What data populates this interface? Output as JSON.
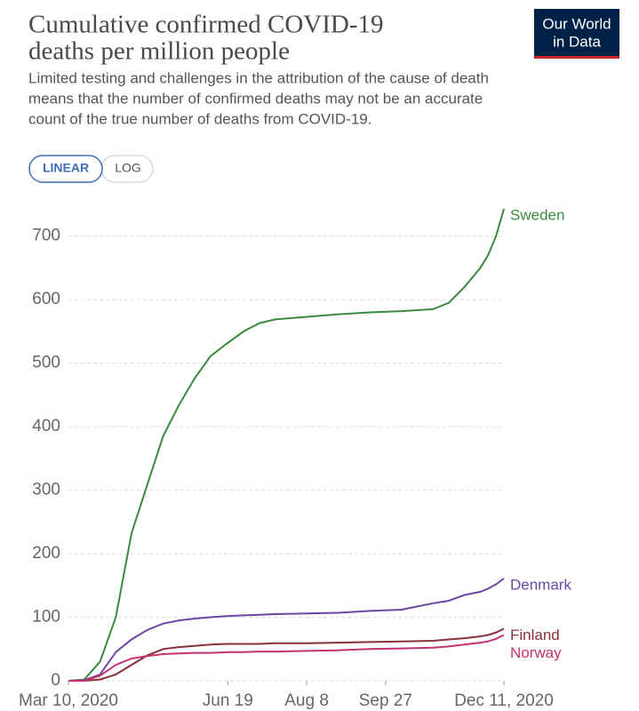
{
  "chart_data": {
    "type": "line",
    "title_lines": [
      "Cumulative confirmed COVID-19",
      "deaths per million people"
    ],
    "subtitle_lines": [
      "Limited testing and challenges in the attribution of the cause of death",
      "means that the number of confirmed deaths may not be an accurate",
      "count of the true number of deaths from COVID-19."
    ],
    "logo_lines": [
      "Our World",
      "in Data"
    ],
    "scale_buttons": [
      "LINEAR",
      "LOG"
    ],
    "x": [
      "2020-03-10",
      "2020-03-20",
      "2020-03-30",
      "2020-04-09",
      "2020-04-19",
      "2020-04-29",
      "2020-05-09",
      "2020-05-19",
      "2020-05-29",
      "2020-06-08",
      "2020-06-19",
      "2020-06-29",
      "2020-07-09",
      "2020-07-19",
      "2020-08-08",
      "2020-08-28",
      "2020-09-17",
      "2020-10-07",
      "2020-10-27",
      "2020-11-06",
      "2020-11-16",
      "2020-11-26",
      "2020-12-01",
      "2020-12-06",
      "2020-12-11"
    ],
    "series": [
      {
        "name": "Sweden",
        "color": "#3a8a3e",
        "values": [
          0,
          2,
          30,
          100,
          232,
          309,
          385,
          434,
          476,
          511,
          532,
          550,
          563,
          569,
          573,
          577,
          580,
          582,
          585,
          595,
          620,
          650,
          670,
          700,
          743
        ]
      },
      {
        "name": "Denmark",
        "color": "#6b46a3",
        "values": [
          0,
          1,
          10,
          45,
          65,
          80,
          90,
          95,
          98,
          100,
          102,
          103,
          104,
          105,
          106,
          107,
          110,
          112,
          122,
          126,
          135,
          140,
          145,
          152,
          161
        ]
      },
      {
        "name": "Finland",
        "color": "#883039",
        "values": [
          0,
          0,
          2,
          10,
          25,
          40,
          50,
          53,
          55,
          57,
          58,
          58,
          58,
          59,
          59,
          60,
          61,
          62,
          63,
          65,
          67,
          70,
          72,
          76,
          82
        ]
      },
      {
        "name": "Norway",
        "color": "#c4336f",
        "values": [
          0,
          0,
          8,
          25,
          35,
          39,
          42,
          43,
          44,
          44,
          45,
          45,
          46,
          46,
          47,
          48,
          50,
          51,
          52,
          54,
          57,
          60,
          62,
          66,
          72
        ]
      }
    ],
    "xlim": [
      "2020-03-10",
      "2020-12-11"
    ],
    "xticks": [
      {
        "value": "2020-03-10",
        "label": "Mar 10, 2020"
      },
      {
        "value": "2020-06-19",
        "label": "Jun 19"
      },
      {
        "value": "2020-08-08",
        "label": "Aug 8"
      },
      {
        "value": "2020-09-27",
        "label": "Sep 27"
      },
      {
        "value": "2020-12-11",
        "label": "Dec 11, 2020"
      }
    ],
    "ylim": [
      0,
      750
    ],
    "yticks": [
      0,
      100,
      200,
      300,
      400,
      500,
      600,
      700
    ],
    "grid": true
  }
}
